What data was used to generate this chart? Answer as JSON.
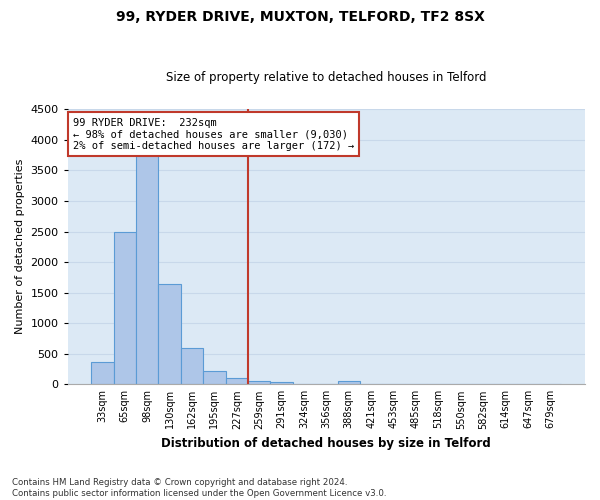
{
  "title1": "99, RYDER DRIVE, MUXTON, TELFORD, TF2 8SX",
  "title2": "Size of property relative to detached houses in Telford",
  "xlabel": "Distribution of detached houses by size in Telford",
  "ylabel": "Number of detached properties",
  "footer1": "Contains HM Land Registry data © Crown copyright and database right 2024.",
  "footer2": "Contains public sector information licensed under the Open Government Licence v3.0.",
  "categories": [
    "33sqm",
    "65sqm",
    "98sqm",
    "130sqm",
    "162sqm",
    "195sqm",
    "227sqm",
    "259sqm",
    "291sqm",
    "324sqm",
    "356sqm",
    "388sqm",
    "421sqm",
    "453sqm",
    "485sqm",
    "518sqm",
    "550sqm",
    "582sqm",
    "614sqm",
    "647sqm",
    "679sqm"
  ],
  "values": [
    370,
    2500,
    3750,
    1640,
    590,
    225,
    100,
    60,
    35,
    0,
    0,
    55,
    0,
    0,
    0,
    0,
    0,
    0,
    0,
    0,
    0
  ],
  "bar_color": "#aec6e8",
  "bar_edge_color": "#5b9bd5",
  "grid_color": "#c8d8ea",
  "bg_color": "#dce9f5",
  "vline_color": "#c0392b",
  "annotation_text": "99 RYDER DRIVE:  232sqm\n← 98% of detached houses are smaller (9,030)\n2% of semi-detached houses are larger (172) →",
  "annotation_box_color": "#c0392b",
  "ylim": [
    0,
    4500
  ],
  "yticks": [
    0,
    500,
    1000,
    1500,
    2000,
    2500,
    3000,
    3500,
    4000,
    4500
  ]
}
